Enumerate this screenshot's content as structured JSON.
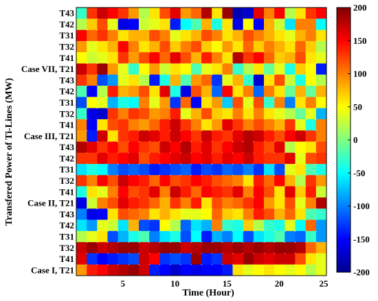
{
  "chart_data": {
    "type": "heatmap",
    "title": "",
    "xlabel": "Time (Hour)",
    "ylabel": "Transfered Power of Ti-Lines (MW)",
    "x_ticks": [
      "5",
      "10",
      "15",
      "20",
      "25"
    ],
    "x_range": [
      1,
      24
    ],
    "y_labels_top_to_bottom": [
      "T43",
      "T42",
      "T31",
      "T32",
      "T41",
      "Case VII, T21",
      "T43",
      "T42",
      "T31",
      "T32",
      "T41",
      "Case III, T21",
      "T43",
      "T42",
      "T31",
      "T32",
      "T41",
      "Case II, T21",
      "T43",
      "T42",
      "T31",
      "T32",
      "T41",
      "Case I, T21"
    ],
    "colorbar": {
      "ticks": [
        "200",
        "150",
        "100",
        "50",
        "0",
        "-50",
        "-100",
        "-150",
        "-200"
      ],
      "range": [
        -200,
        200
      ],
      "colormap": "jet"
    },
    "values_top_to_bottom": [
      [
        -30,
        130,
        170,
        150,
        130,
        90,
        20,
        60,
        120,
        160,
        90,
        110,
        180,
        60,
        190,
        -180,
        -170,
        160,
        100,
        150,
        20,
        60,
        130,
        150
      ],
      [
        20,
        70,
        120,
        40,
        -160,
        -150,
        30,
        40,
        60,
        -140,
        -50,
        -20,
        80,
        -40,
        60,
        -160,
        50,
        -150,
        80,
        30,
        -60,
        100,
        100,
        -50
      ],
      [
        150,
        110,
        130,
        100,
        60,
        80,
        80,
        120,
        100,
        40,
        60,
        80,
        120,
        100,
        60,
        80,
        120,
        100,
        80,
        60,
        40,
        80,
        100,
        60
      ],
      [
        90,
        40,
        60,
        80,
        150,
        100,
        60,
        80,
        120,
        70,
        100,
        120,
        70,
        50,
        90,
        60,
        110,
        70,
        100,
        80,
        60,
        110,
        70,
        20
      ],
      [
        50,
        30,
        40,
        60,
        130,
        90,
        120,
        150,
        110,
        160,
        120,
        80,
        140,
        100,
        60,
        180,
        130,
        150,
        110,
        70,
        80,
        120,
        60,
        40
      ],
      [
        170,
        130,
        190,
        90,
        40,
        -30,
        50,
        90,
        30,
        60,
        50,
        -20,
        40,
        60,
        100,
        -30,
        20,
        60,
        -10,
        40,
        -40,
        70,
        50,
        -140
      ],
      [
        130,
        100,
        -120,
        -90,
        40,
        60,
        20,
        -140,
        -40,
        80,
        -20,
        90,
        110,
        -130,
        40,
        80,
        -30,
        -170,
        60,
        120,
        30,
        -40,
        50,
        20
      ],
      [
        -20,
        -150,
        20,
        140,
        80,
        90,
        120,
        60,
        160,
        -40,
        -160,
        120,
        80,
        -110,
        150,
        60,
        100,
        -110,
        100,
        60,
        -10,
        80,
        -10,
        80
      ],
      [
        -120,
        50,
        40,
        -80,
        -40,
        -50,
        100,
        40,
        90,
        -130,
        110,
        -150,
        60,
        90,
        -70,
        120,
        40,
        120,
        -30,
        100,
        -100,
        60,
        100,
        50
      ],
      [
        -30,
        -160,
        -170,
        130,
        100,
        130,
        120,
        90,
        100,
        140,
        40,
        80,
        120,
        70,
        60,
        100,
        60,
        100,
        60,
        40,
        20,
        -10,
        40,
        -80
      ],
      [
        100,
        -150,
        60,
        120,
        130,
        100,
        90,
        110,
        140,
        170,
        130,
        100,
        60,
        90,
        160,
        130,
        100,
        120,
        100,
        80,
        130,
        40,
        -40,
        100
      ],
      [
        90,
        -140,
        170,
        60,
        130,
        140,
        170,
        160,
        140,
        170,
        150,
        130,
        170,
        140,
        130,
        160,
        180,
        170,
        140,
        120,
        150,
        170,
        130,
        100
      ],
      [
        180,
        160,
        130,
        150,
        120,
        150,
        130,
        120,
        170,
        150,
        180,
        140,
        160,
        130,
        150,
        170,
        180,
        140,
        120,
        160,
        20,
        50,
        60,
        120
      ],
      [
        130,
        130,
        160,
        140,
        150,
        160,
        120,
        140,
        150,
        160,
        170,
        150,
        160,
        140,
        160,
        150,
        170,
        140,
        130,
        130,
        160,
        40,
        120,
        130
      ],
      [
        -60,
        -40,
        -50,
        -100,
        -120,
        -110,
        -120,
        -140,
        -130,
        -120,
        -110,
        -140,
        -120,
        -130,
        -110,
        -120,
        -100,
        -130,
        -60,
        -120,
        40,
        60,
        -20,
        -40
      ],
      [
        130,
        100,
        150,
        120,
        170,
        150,
        140,
        110,
        150,
        120,
        130,
        150,
        140,
        120,
        110,
        100,
        60,
        140,
        110,
        150,
        80,
        20,
        130,
        90
      ],
      [
        -40,
        60,
        40,
        100,
        150,
        120,
        130,
        160,
        100,
        170,
        140,
        110,
        150,
        140,
        130,
        160,
        100,
        150,
        120,
        60,
        160,
        70,
        140,
        30
      ],
      [
        -160,
        30,
        100,
        120,
        160,
        140,
        130,
        110,
        80,
        130,
        100,
        140,
        60,
        120,
        100,
        110,
        130,
        150,
        90,
        60,
        120,
        40,
        100,
        180
      ],
      [
        -100,
        -160,
        -150,
        60,
        120,
        110,
        100,
        60,
        80,
        60,
        40,
        40,
        50,
        110,
        70,
        60,
        100,
        140,
        120,
        80,
        110,
        60,
        -20,
        -30
      ],
      [
        -60,
        -90,
        40,
        30,
        -60,
        80,
        -120,
        -130,
        50,
        20,
        -110,
        -60,
        -80,
        100,
        -30,
        -40,
        70,
        20,
        -30,
        -40,
        40,
        -50,
        110,
        -90
      ],
      [
        20,
        40,
        60,
        -120,
        -80,
        -40,
        -20,
        -100,
        -60,
        -40,
        -120,
        -50,
        -140,
        -80,
        -100,
        -50,
        -120,
        -60,
        -40,
        -20,
        -100,
        -110,
        -30,
        -90
      ],
      [
        170,
        190,
        170,
        180,
        190,
        190,
        170,
        180,
        190,
        190,
        170,
        180,
        190,
        190,
        180,
        190,
        180,
        190,
        180,
        190,
        190,
        180,
        110,
        80
      ],
      [
        160,
        -130,
        -150,
        -140,
        -130,
        -120,
        170,
        150,
        -130,
        -120,
        -130,
        190,
        -140,
        -130,
        170,
        160,
        190,
        170,
        160,
        170,
        170,
        120,
        60,
        40
      ],
      [
        90,
        140,
        150,
        170,
        180,
        190,
        170,
        -140,
        -150,
        -170,
        -150,
        -160,
        -150,
        -150,
        -140,
        60,
        40,
        50,
        60,
        50,
        40,
        50,
        20,
        40
      ]
    ]
  }
}
